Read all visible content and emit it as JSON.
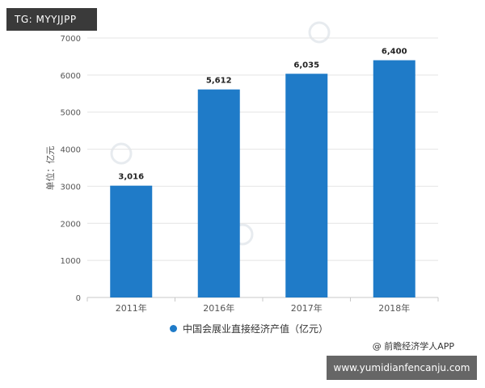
{
  "badge": {
    "text": "TG: MYYJJPP"
  },
  "source_note": "@ 前瞻经济学人APP",
  "url_bar": "www.yumidianfencanju.com",
  "colors": {
    "bar": "#1f7bc8",
    "grid": "#e4e4e4",
    "axis_text": "#555555",
    "watermark": "#cfd8e0"
  },
  "chart_data": {
    "type": "bar",
    "categories": [
      "2011年",
      "2016年",
      "2017年",
      "2018年"
    ],
    "series": [
      {
        "name": "中国会展业直接经济产值（亿元）",
        "values": [
          3016,
          5612,
          6035,
          6400
        ],
        "value_labels": [
          "3,016",
          "5,612",
          "6,035",
          "6,400"
        ]
      }
    ],
    "ylabel": "单位：亿元",
    "ylim": [
      0,
      7000
    ],
    "yticks": [
      0,
      1000,
      2000,
      3000,
      4000,
      5000,
      6000,
      7000
    ],
    "grid": true,
    "legend_position": "bottom"
  }
}
